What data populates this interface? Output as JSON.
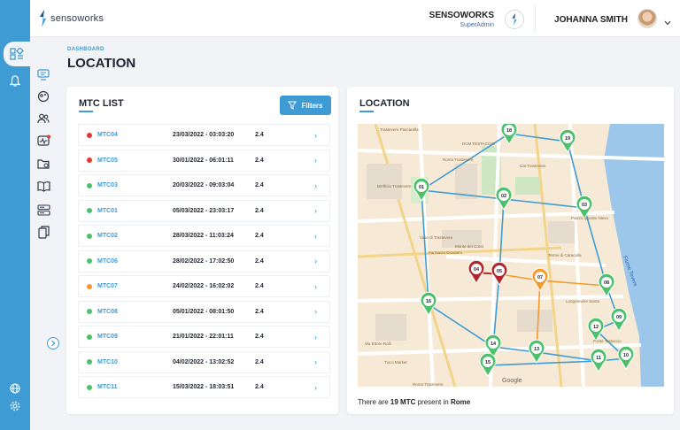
{
  "brand": {
    "logo_text": "sensoworks"
  },
  "header": {
    "org_name": "SENSOWORKS",
    "org_role": "SuperAdmin",
    "user_name": "JOHANNA SMITH"
  },
  "page": {
    "breadcrumb": "DASHBOARD",
    "title": "LOCATION"
  },
  "mtc_list": {
    "title": "MTC LIST",
    "filters_label": "Filters",
    "rows": [
      {
        "code": "MTC04",
        "datetime": "23/03/2022 - 03:03:20",
        "version": "2.4",
        "status": "red"
      },
      {
        "code": "MTC05",
        "datetime": "30/01/2022 - 06:01:11",
        "version": "2.4",
        "status": "red"
      },
      {
        "code": "MTC03",
        "datetime": "20/03/2022 - 09:03:04",
        "version": "2.4",
        "status": "green"
      },
      {
        "code": "MTC01",
        "datetime": "05/03/2022 - 23:03:17",
        "version": "2.4",
        "status": "green"
      },
      {
        "code": "MTC02",
        "datetime": "28/03/2022 - 11:03:24",
        "version": "2.4",
        "status": "green"
      },
      {
        "code": "MTC06",
        "datetime": "28/02/2022 - 17:02:50",
        "version": "2.4",
        "status": "green"
      },
      {
        "code": "MTC07",
        "datetime": "24/02/2022 - 16:02:02",
        "version": "2.4",
        "status": "orange"
      },
      {
        "code": "MTC08",
        "datetime": "05/01/2022 - 08:01:50",
        "version": "2.4",
        "status": "green"
      },
      {
        "code": "MTC09",
        "datetime": "21/01/2022 - 22:01:11",
        "version": "2.4",
        "status": "green"
      },
      {
        "code": "MTC10",
        "datetime": "04/02/2022 - 13:02:52",
        "version": "2.4",
        "status": "green"
      },
      {
        "code": "MTC11",
        "datetime": "15/03/2022 - 18:03:51",
        "version": "2.4",
        "status": "green"
      }
    ]
  },
  "location": {
    "title": "LOCATION",
    "footer_prefix": "There are ",
    "count_text": "19 MTC",
    "footer_mid": " present in ",
    "city": "Rome",
    "map_labels": {
      "river": "Fiume Tevere",
      "google": "Google",
      "places": [
        "Trastevere Pascarella",
        "DCM TESTACCIO",
        "Roma Trastevere",
        "Cat Trastevere",
        "Birrificio Trastevere",
        "Piazza Ippolito Nievo",
        "Farmacia Giovanni",
        "Terme di Caracalla",
        "Longotevere Santa",
        "Ponte Testaccio",
        "Monte dei Cocci",
        "Via Ettore Rolli",
        "Viale di Trastevere",
        "Tucci Market",
        "Roma Trastevere"
      ]
    },
    "markers": [
      {
        "label": "01",
        "color": "#4cc06a"
      },
      {
        "label": "02",
        "color": "#4cc06a"
      },
      {
        "label": "03",
        "color": "#4cc06a"
      },
      {
        "label": "04",
        "color": "#b3262b"
      },
      {
        "label": "05",
        "color": "#b3262b"
      },
      {
        "label": "07",
        "color": "#f39a2b"
      },
      {
        "label": "08",
        "color": "#4cc06a"
      },
      {
        "label": "09",
        "color": "#4cc06a"
      },
      {
        "label": "10",
        "color": "#4cc06a"
      },
      {
        "label": "11",
        "color": "#4cc06a"
      },
      {
        "label": "12",
        "color": "#4cc06a"
      },
      {
        "label": "13",
        "color": "#4cc06a"
      },
      {
        "label": "14",
        "color": "#4cc06a"
      },
      {
        "label": "15",
        "color": "#4cc06a"
      },
      {
        "label": "16",
        "color": "#4cc06a"
      },
      {
        "label": "18",
        "color": "#4cc06a"
      },
      {
        "label": "19",
        "color": "#4cc06a"
      }
    ]
  },
  "colors": {
    "accent": "#3e9bd4",
    "status_red": "#e8352f",
    "status_green": "#4cc06a",
    "status_orange": "#f39a2b"
  },
  "icons": [
    "dashboard-icon",
    "bell-icon",
    "monitor-icon",
    "palette-icon",
    "users-icon",
    "pulse-icon",
    "folder-map-icon",
    "book-icon",
    "server-icon",
    "copy-icon",
    "globe-icon",
    "settings-icon",
    "chevron-right-icon",
    "filter-icon",
    "chevron-down-icon",
    "sensoworks-badge-icon"
  ]
}
